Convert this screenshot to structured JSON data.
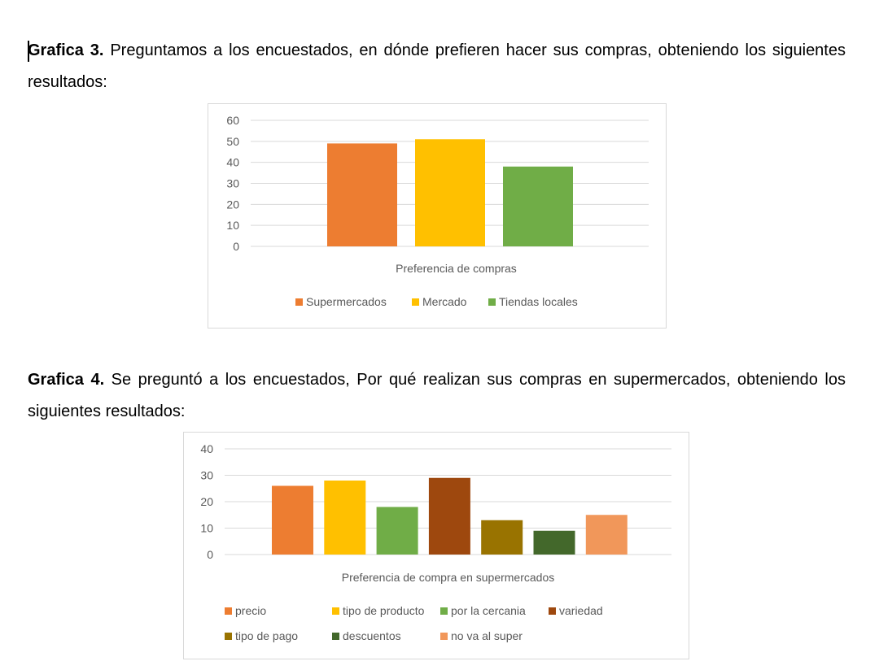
{
  "section3": {
    "label": "Grafica 3.",
    "text": " Preguntamos a los encuestados, en dónde prefieren hacer sus compras, obteniendo los siguientes resultados:"
  },
  "section4": {
    "label": "Grafica 4.",
    "text": " Se preguntó a los encuestados, Por qué realizan sus compras en supermercados, obteniendo los siguientes resultados:"
  },
  "chart_data": [
    {
      "type": "bar",
      "xlabel": "Preferencia de compras",
      "ylim": [
        0,
        60
      ],
      "yticks": [
        0,
        10,
        20,
        30,
        40,
        50,
        60
      ],
      "grid": true,
      "legend_position": "bottom",
      "series": [
        {
          "name": "Supermercados",
          "values": [
            49
          ],
          "color": "#ED7D31"
        },
        {
          "name": "Mercado",
          "values": [
            51
          ],
          "color": "#FFC000"
        },
        {
          "name": "Tiendas locales",
          "values": [
            38
          ],
          "color": "#70AD47"
        }
      ]
    },
    {
      "type": "bar",
      "xlabel": "Preferencia de compra en supermercados",
      "ylim": [
        0,
        40
      ],
      "yticks": [
        0,
        10,
        20,
        30,
        40
      ],
      "grid": true,
      "legend_position": "bottom",
      "series": [
        {
          "name": "precio",
          "values": [
            26
          ],
          "color": "#ED7D31"
        },
        {
          "name": "tipo de producto",
          "values": [
            28
          ],
          "color": "#FFC000"
        },
        {
          "name": "por la cercania",
          "values": [
            18
          ],
          "color": "#70AD47"
        },
        {
          "name": "variedad",
          "values": [
            29
          ],
          "color": "#9E480E"
        },
        {
          "name": "tipo de pago",
          "values": [
            13
          ],
          "color": "#997300"
        },
        {
          "name": "descuentos",
          "values": [
            9
          ],
          "color": "#43682B"
        },
        {
          "name": "no va al super",
          "values": [
            15
          ],
          "color": "#F1975A"
        }
      ]
    }
  ]
}
